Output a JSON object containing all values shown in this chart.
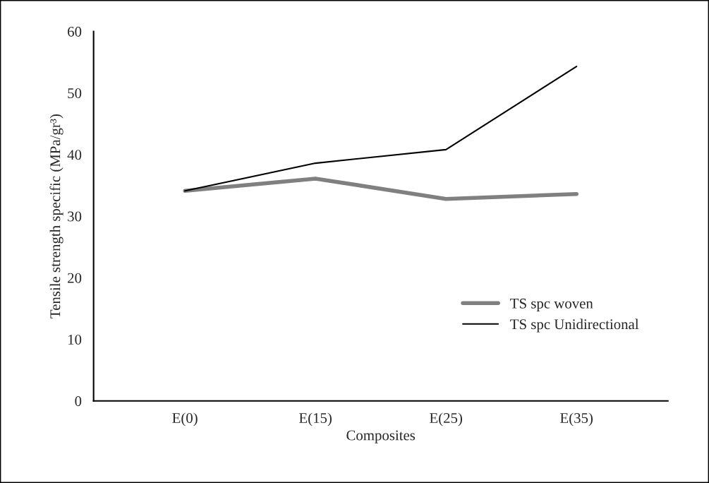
{
  "chart_data": {
    "type": "line",
    "xlabel": "Composites",
    "ylabel": "Tensile strength specific (MPa/gr³)",
    "categories": [
      "E(0)",
      "E(15)",
      "E(25)",
      "E(35)"
    ],
    "series": [
      {
        "name": "TS spc woven",
        "color": "#808080",
        "values": [
          34.1,
          36.1,
          32.8,
          33.6
        ]
      },
      {
        "name": "TS spc Unidirectional",
        "color": "#000000",
        "values": [
          34.1,
          38.6,
          40.8,
          54.3
        ]
      }
    ],
    "ylim": [
      0,
      60
    ],
    "yticks": [
      0,
      10,
      20,
      30,
      40,
      50,
      60
    ],
    "grid": false,
    "legend": "bottom right",
    "marker": "none",
    "line_style": "solid"
  }
}
